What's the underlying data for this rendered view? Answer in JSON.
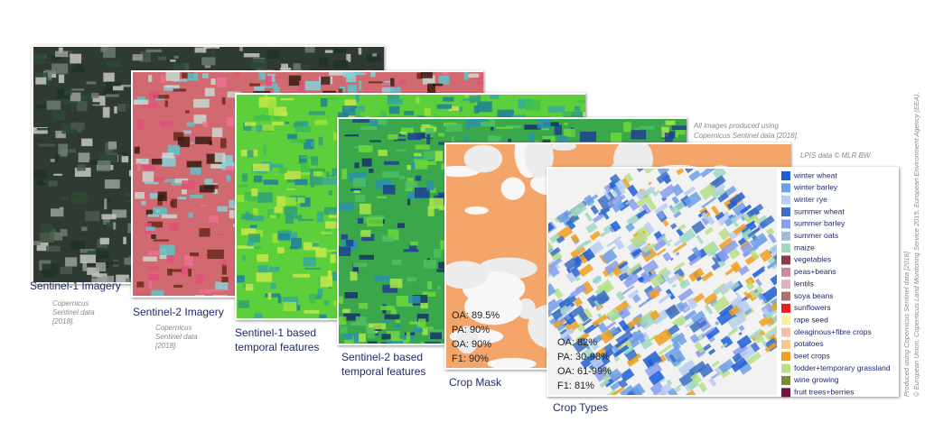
{
  "panels": [
    {
      "label": [
        "Sentinel-1 Imagery"
      ],
      "credit": [
        "Copernicus",
        "Sentinel data",
        "[2018]."
      ]
    },
    {
      "label": [
        "Sentinel-2 Imagery"
      ],
      "credit": [
        "Copernicus",
        "Sentinel data",
        "[2018]."
      ]
    },
    {
      "label": [
        "Sentinel-1 based",
        "temporal features"
      ]
    },
    {
      "label": [
        "Sentinel-2 based",
        "temporal features"
      ]
    },
    {
      "label": [
        "Crop Mask"
      ],
      "metrics": [
        "OA: 89.5%",
        "PA: 90%",
        "OA: 90%",
        "F1: 90%"
      ]
    },
    {
      "label": [
        "Crop Types"
      ],
      "metrics": [
        "OA: 82%",
        "PA: 30-98%",
        "OA: 61-99%",
        "F1: 81%"
      ]
    }
  ],
  "note": [
    "All images produced using",
    "Copernicus Sentinel data [2018]."
  ],
  "lpis": "LPIS data © MLR BW",
  "side_credits": [
    "Produced using Copernicus Sentinel data [2018].",
    "© European Union, Copernicus Land Monitoring Service 2015, European Environment Agency (EEA)."
  ],
  "legend": [
    {
      "label": "winter wheat",
      "color": "#1f5fd6"
    },
    {
      "label": "winter barley",
      "color": "#6f9fe8"
    },
    {
      "label": "winter rye",
      "color": "#b7cff2"
    },
    {
      "label": "summer wheat",
      "color": "#3b6fc6"
    },
    {
      "label": "summer barley",
      "color": "#8a9ff0"
    },
    {
      "label": "summer oats",
      "color": "#a8b8d8"
    },
    {
      "label": "maize",
      "color": "#9fd8c0"
    },
    {
      "label": "vegetables",
      "color": "#8b3a4a"
    },
    {
      "label": "peas+beans",
      "color": "#c98aa0"
    },
    {
      "label": "lentils",
      "color": "#e0b0c0"
    },
    {
      "label": "soya beans",
      "color": "#b07070"
    },
    {
      "label": "sunflowers",
      "color": "#e81c1c"
    },
    {
      "label": "rape seed",
      "color": "#f8f0a0"
    },
    {
      "label": "oleaginous+fibre crops",
      "color": "#f4c0a0"
    },
    {
      "label": "potatoes",
      "color": "#f6c98a"
    },
    {
      "label": "beet crops",
      "color": "#f0a020"
    },
    {
      "label": "fodder+temporary grassland",
      "color": "#b8e08a"
    },
    {
      "label": "wine growing",
      "color": "#7a8a3a"
    },
    {
      "label": "fruit trees+berries",
      "color": "#7a1040"
    }
  ]
}
